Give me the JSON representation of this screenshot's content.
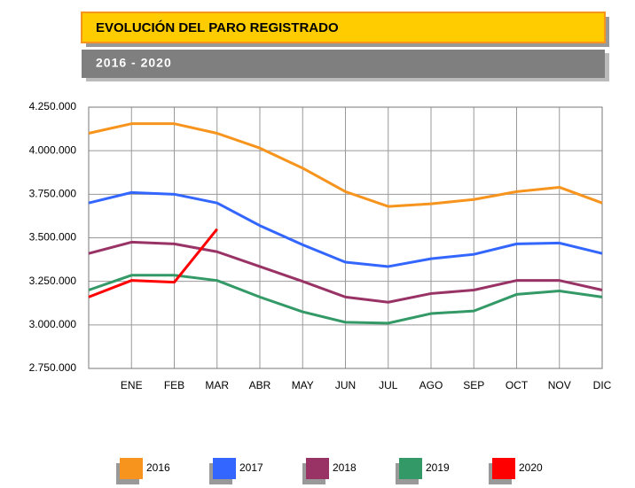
{
  "chart_data": {
    "type": "line",
    "title": "EVOLUCIÓN DEL PARO REGISTRADO",
    "subtitle": "2016 - 2020",
    "categories": [
      null,
      "ENE",
      "FEB",
      "MAR",
      "ABR",
      "MAY",
      "JUN",
      "JUL",
      "AGO",
      "SEP",
      "OCT",
      "NOV",
      "DIC"
    ],
    "series": [
      {
        "name": "2016",
        "color": "#f7941d",
        "values": [
          4100000,
          4155000,
          4155000,
          4100000,
          4015000,
          3900000,
          3765000,
          3680000,
          3695000,
          3720000,
          3765000,
          3790000,
          3700000
        ]
      },
      {
        "name": "2017",
        "color": "#3366ff",
        "values": [
          3700000,
          3760000,
          3750000,
          3700000,
          3570000,
          3460000,
          3360000,
          3335000,
          3380000,
          3405000,
          3465000,
          3470000,
          3410000
        ]
      },
      {
        "name": "2018",
        "color": "#993366",
        "values": [
          3410000,
          3475000,
          3465000,
          3420000,
          3335000,
          3250000,
          3160000,
          3130000,
          3180000,
          3200000,
          3255000,
          3255000,
          3200000
        ]
      },
      {
        "name": "2019",
        "color": "#339966",
        "values": [
          3200000,
          3285000,
          3285000,
          3255000,
          3160000,
          3075000,
          3015000,
          3010000,
          3065000,
          3080000,
          3175000,
          3195000,
          3160000
        ]
      },
      {
        "name": "2020",
        "color": "#ff0000",
        "values": [
          3160000,
          3255000,
          3245000,
          3550000,
          null,
          null,
          null,
          null,
          null,
          null,
          null,
          null,
          null
        ]
      }
    ],
    "ylim": [
      2750000,
      4250000
    ],
    "yticks": [
      {
        "value": 2750000,
        "label": "2.750.000"
      },
      {
        "value": 3000000,
        "label": "3.000.000"
      },
      {
        "value": 3250000,
        "label": "3.250.000"
      },
      {
        "value": 3500000,
        "label": "3.500.000"
      },
      {
        "value": 3750000,
        "label": "3.750.000"
      },
      {
        "value": 4000000,
        "label": "4.000.000"
      },
      {
        "value": 4250000,
        "label": "4.250.000"
      }
    ],
    "grid": true,
    "legend": "bottom"
  }
}
